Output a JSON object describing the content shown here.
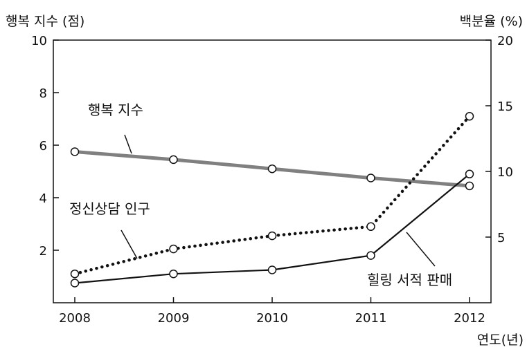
{
  "chart_data": {
    "type": "line",
    "x": [
      2008,
      2009,
      2010,
      2011,
      2012
    ],
    "xlabel": "연도(년)",
    "y_left_label": "행복 지수 (점)",
    "y_right_label": "백분율 (%)",
    "y_left_lim": [
      0,
      10
    ],
    "y_right_lim": [
      0,
      20
    ],
    "y_left_ticks": [
      "2",
      "4",
      "6",
      "8",
      "10"
    ],
    "y_right_ticks": [
      "5",
      "10",
      "15",
      "20"
    ],
    "x_tick_labels": [
      "2008",
      "2009",
      "2010",
      "2011",
      "2012"
    ],
    "grid": false,
    "series": [
      {
        "name": "행복 지수",
        "axis": "left",
        "style": "thick-gray",
        "color": "#808080",
        "values": [
          5.75,
          5.45,
          5.1,
          4.75,
          4.45
        ]
      },
      {
        "name": "정신상담 인구",
        "axis": "right",
        "style": "dotted",
        "color": "#111111",
        "values": [
          2.2,
          4.1,
          5.1,
          5.8,
          14.2
        ]
      },
      {
        "name": "힐링 서적 판매",
        "axis": "right",
        "style": "solid",
        "color": "#111111",
        "values": [
          1.5,
          2.2,
          2.5,
          3.6,
          9.8
        ]
      }
    ]
  }
}
